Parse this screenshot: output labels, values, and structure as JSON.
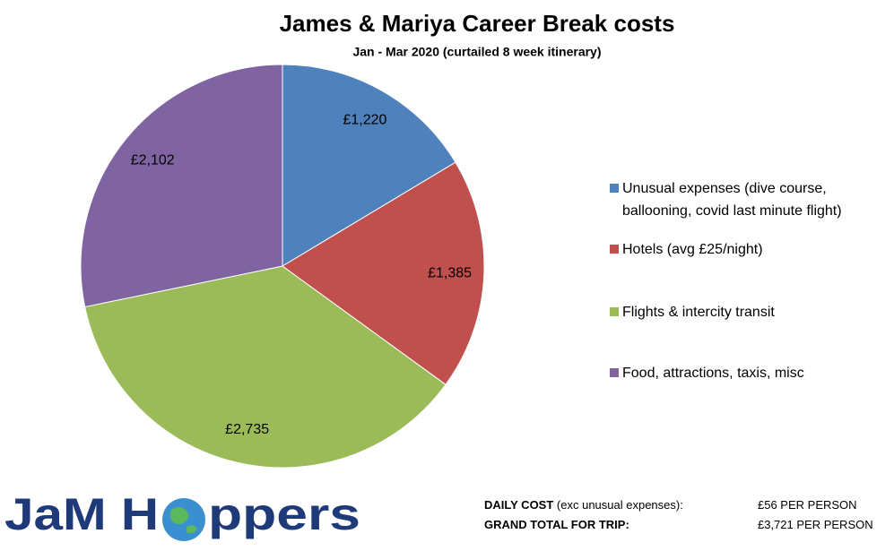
{
  "chart_data": {
    "type": "pie",
    "title": "James & Mariya Career Break costs",
    "subtitle": "Jan - Mar 2020 (curtailed 8 week itinerary)",
    "categories": [
      "Unusual expenses (dive course, ballooning, covid last minute flight)",
      "Hotels (avg £25/night)",
      "Flights & intercity transit",
      "Food, attractions, taxis, misc"
    ],
    "values": [
      1220,
      1385,
      2735,
      2102
    ],
    "value_labels": [
      "£1,220",
      "£1,385",
      "£2,735",
      "£2,102"
    ],
    "colors": [
      "#4f81bd",
      "#c0504d",
      "#9bbb59",
      "#8064a2"
    ],
    "legend": "right"
  },
  "footer": {
    "daily_label": "DAILY COST",
    "daily_note": "(exc unusual expenses):",
    "daily_value": "£56 PER PERSON",
    "total_label": "GRAND TOTAL FOR TRIP:",
    "total_value": "£3,721 PER PERSON"
  },
  "logo": {
    "left": "JaM H",
    "right": "ppers"
  }
}
